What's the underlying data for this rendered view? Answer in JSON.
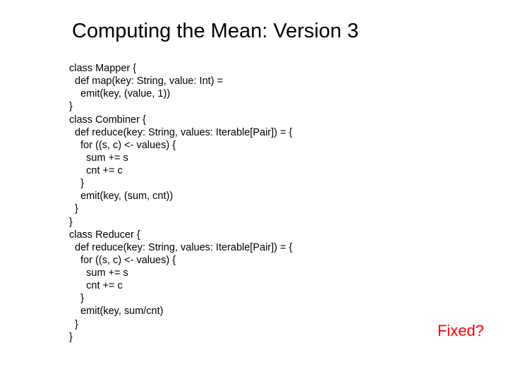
{
  "title": "Computing the Mean: Version 3",
  "code": {
    "lines": [
      "class Mapper {",
      "  def map(key: String, value: Int) =",
      "    emit(key, (value, 1))",
      "}",
      "class Combiner {",
      "  def reduce(key: String, values: Iterable[Pair]) = {",
      "    for ((s, c) <- values) {",
      "      sum += s",
      "      cnt += c",
      "    }",
      "    emit(key, (sum, cnt))",
      "  }",
      "}",
      "class Reducer {",
      "  def reduce(key: String, values: Iterable[Pair]) = {",
      "    for ((s, c) <- values) {",
      "      sum += s",
      "      cnt += c",
      "    }",
      "    emit(key, sum/cnt)",
      "  }",
      "}"
    ]
  },
  "annotation": "Fixed?",
  "style": {
    "background_color": "#ffffff",
    "title_color": "#000000",
    "title_fontsize": 29,
    "code_color": "#000000",
    "code_fontsize": 14.5,
    "annotation_color": "#ff0000",
    "annotation_fontsize": 22
  }
}
